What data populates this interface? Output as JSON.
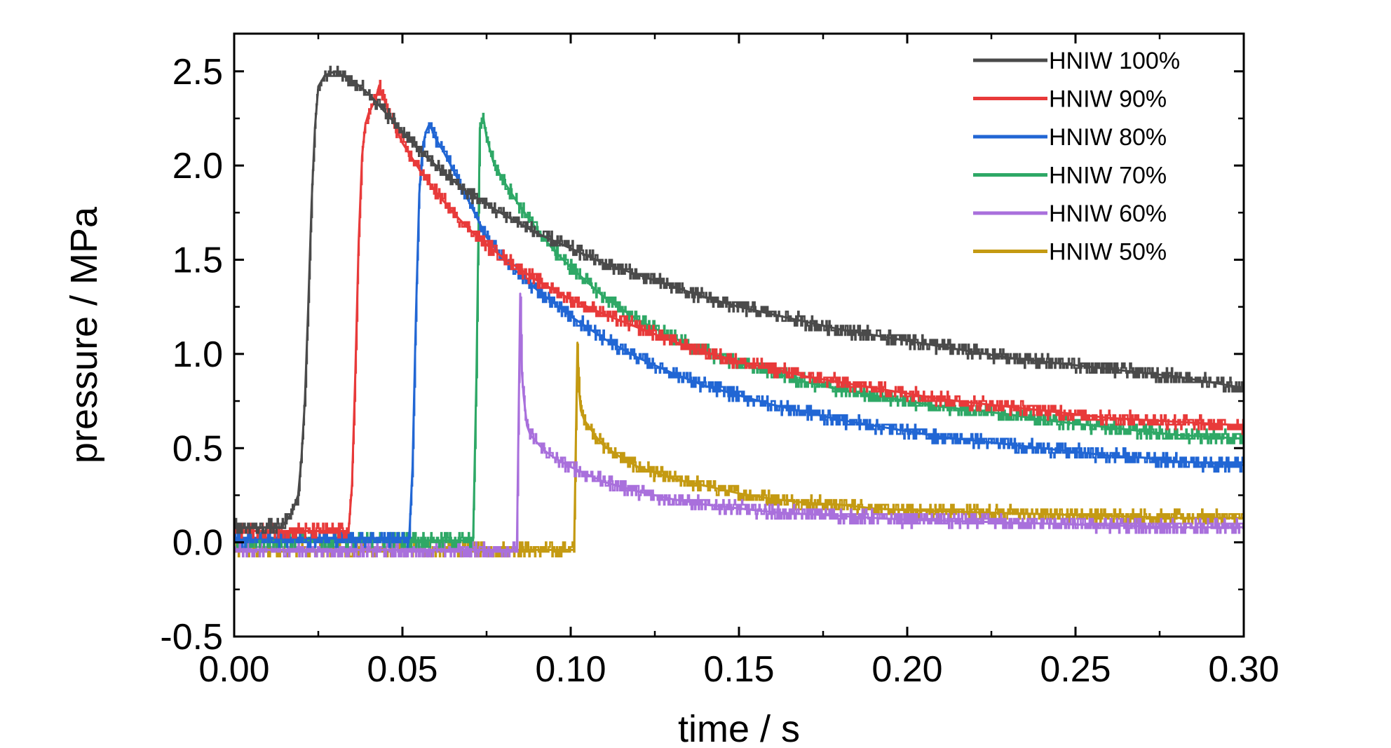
{
  "chart_data": {
    "type": "line",
    "title": "",
    "xlabel": "time / s",
    "ylabel": "pressure / MPa",
    "xlim": [
      0.0,
      0.3
    ],
    "ylim": [
      -0.5,
      2.7
    ],
    "xticks": [
      "0.00",
      "0.05",
      "0.10",
      "0.15",
      "0.20",
      "0.25",
      "0.30"
    ],
    "yticks": [
      "-0.5",
      "0.0",
      "0.5",
      "1.0",
      "1.5",
      "2.0",
      "2.5"
    ],
    "xtick_values": [
      0.0,
      0.05,
      0.1,
      0.15,
      0.2,
      0.25,
      0.3
    ],
    "ytick_values": [
      -0.5,
      0.0,
      0.5,
      1.0,
      1.5,
      2.0,
      2.5
    ],
    "grid": false,
    "legend_position": "top-right",
    "series": [
      {
        "name": "HNIW 100%",
        "color": "#4a4a4a",
        "x": [
          0.0,
          0.014,
          0.017,
          0.019,
          0.02,
          0.021,
          0.022,
          0.023,
          0.024,
          0.025,
          0.027,
          0.03,
          0.033,
          0.036,
          0.04,
          0.045,
          0.05,
          0.055,
          0.06,
          0.065,
          0.07,
          0.08,
          0.09,
          0.1,
          0.11,
          0.12,
          0.13,
          0.14,
          0.15,
          0.16,
          0.17,
          0.18,
          0.19,
          0.2,
          0.21,
          0.22,
          0.23,
          0.24,
          0.25,
          0.26,
          0.27,
          0.28,
          0.29,
          0.3
        ],
        "y": [
          0.08,
          0.08,
          0.15,
          0.25,
          0.45,
          0.75,
          1.25,
          1.8,
          2.2,
          2.42,
          2.48,
          2.5,
          2.47,
          2.44,
          2.38,
          2.28,
          2.18,
          2.08,
          2.0,
          1.92,
          1.85,
          1.74,
          1.64,
          1.56,
          1.48,
          1.42,
          1.36,
          1.3,
          1.25,
          1.21,
          1.17,
          1.13,
          1.1,
          1.07,
          1.04,
          1.01,
          0.98,
          0.96,
          0.94,
          0.92,
          0.9,
          0.88,
          0.85,
          0.82
        ]
      },
      {
        "name": "HNIW 90%",
        "color": "#e83a3a",
        "x": [
          0.0,
          0.034,
          0.035,
          0.036,
          0.037,
          0.038,
          0.039,
          0.04,
          0.042,
          0.043,
          0.044,
          0.046,
          0.048,
          0.05,
          0.055,
          0.06,
          0.065,
          0.07,
          0.075,
          0.08,
          0.09,
          0.1,
          0.11,
          0.12,
          0.13,
          0.14,
          0.15,
          0.16,
          0.17,
          0.18,
          0.19,
          0.2,
          0.21,
          0.22,
          0.23,
          0.24,
          0.25,
          0.26,
          0.27,
          0.28,
          0.29,
          0.3
        ],
        "y": [
          0.06,
          0.06,
          0.3,
          0.9,
          1.6,
          2.05,
          2.22,
          2.28,
          2.35,
          2.42,
          2.38,
          2.28,
          2.2,
          2.12,
          1.98,
          1.86,
          1.75,
          1.66,
          1.58,
          1.51,
          1.39,
          1.29,
          1.21,
          1.14,
          1.07,
          1.01,
          0.96,
          0.92,
          0.88,
          0.85,
          0.82,
          0.79,
          0.76,
          0.74,
          0.72,
          0.7,
          0.68,
          0.66,
          0.65,
          0.64,
          0.63,
          0.62
        ]
      },
      {
        "name": "HNIW 80%",
        "color": "#2166d4",
        "x": [
          0.0,
          0.052,
          0.053,
          0.054,
          0.055,
          0.056,
          0.057,
          0.058,
          0.059,
          0.06,
          0.062,
          0.065,
          0.07,
          0.075,
          0.08,
          0.085,
          0.09,
          0.1,
          0.11,
          0.12,
          0.13,
          0.14,
          0.15,
          0.16,
          0.17,
          0.18,
          0.19,
          0.2,
          0.21,
          0.22,
          0.23,
          0.24,
          0.25,
          0.26,
          0.27,
          0.28,
          0.29,
          0.3
        ],
        "y": [
          0.02,
          0.02,
          0.4,
          1.2,
          1.85,
          2.1,
          2.18,
          2.22,
          2.18,
          2.14,
          2.08,
          1.98,
          1.8,
          1.62,
          1.5,
          1.42,
          1.34,
          1.2,
          1.08,
          0.98,
          0.9,
          0.83,
          0.78,
          0.73,
          0.69,
          0.65,
          0.62,
          0.59,
          0.56,
          0.54,
          0.52,
          0.5,
          0.48,
          0.46,
          0.45,
          0.43,
          0.42,
          0.41
        ]
      },
      {
        "name": "HNIW 70%",
        "color": "#2ea866",
        "x": [
          0.0,
          0.071,
          0.072,
          0.073,
          0.074,
          0.075,
          0.077,
          0.08,
          0.085,
          0.09,
          0.095,
          0.1,
          0.11,
          0.12,
          0.13,
          0.14,
          0.15,
          0.16,
          0.17,
          0.18,
          0.19,
          0.2,
          0.21,
          0.22,
          0.23,
          0.24,
          0.25,
          0.26,
          0.27,
          0.28,
          0.29,
          0.3
        ],
        "y": [
          0.01,
          0.01,
          0.9,
          2.2,
          2.26,
          2.15,
          2.02,
          1.92,
          1.78,
          1.66,
          1.55,
          1.46,
          1.3,
          1.18,
          1.09,
          1.01,
          0.95,
          0.9,
          0.85,
          0.81,
          0.78,
          0.75,
          0.72,
          0.7,
          0.68,
          0.65,
          0.63,
          0.61,
          0.59,
          0.57,
          0.56,
          0.55
        ]
      },
      {
        "name": "HNIW 60%",
        "color": "#a970dc",
        "x": [
          0.0,
          0.084,
          0.085,
          0.0855,
          0.086,
          0.087,
          0.088,
          0.09,
          0.092,
          0.095,
          0.1,
          0.105,
          0.11,
          0.12,
          0.13,
          0.14,
          0.15,
          0.16,
          0.17,
          0.18,
          0.19,
          0.2,
          0.22,
          0.24,
          0.26,
          0.28,
          0.3
        ],
        "y": [
          -0.04,
          -0.04,
          1.32,
          0.9,
          0.78,
          0.62,
          0.57,
          0.53,
          0.49,
          0.45,
          0.4,
          0.36,
          0.32,
          0.27,
          0.23,
          0.2,
          0.18,
          0.16,
          0.15,
          0.14,
          0.13,
          0.12,
          0.11,
          0.1,
          0.09,
          0.08,
          0.08
        ]
      },
      {
        "name": "HNIW 50%",
        "color": "#c49a12",
        "x": [
          0.0,
          0.101,
          0.102,
          0.1025,
          0.103,
          0.104,
          0.106,
          0.108,
          0.11,
          0.115,
          0.12,
          0.13,
          0.14,
          0.15,
          0.16,
          0.17,
          0.18,
          0.19,
          0.2,
          0.22,
          0.24,
          0.26,
          0.28,
          0.3
        ],
        "y": [
          -0.04,
          -0.04,
          1.06,
          0.8,
          0.7,
          0.65,
          0.6,
          0.55,
          0.51,
          0.45,
          0.4,
          0.34,
          0.3,
          0.26,
          0.23,
          0.21,
          0.2,
          0.18,
          0.17,
          0.16,
          0.15,
          0.14,
          0.13,
          0.13
        ]
      }
    ]
  }
}
